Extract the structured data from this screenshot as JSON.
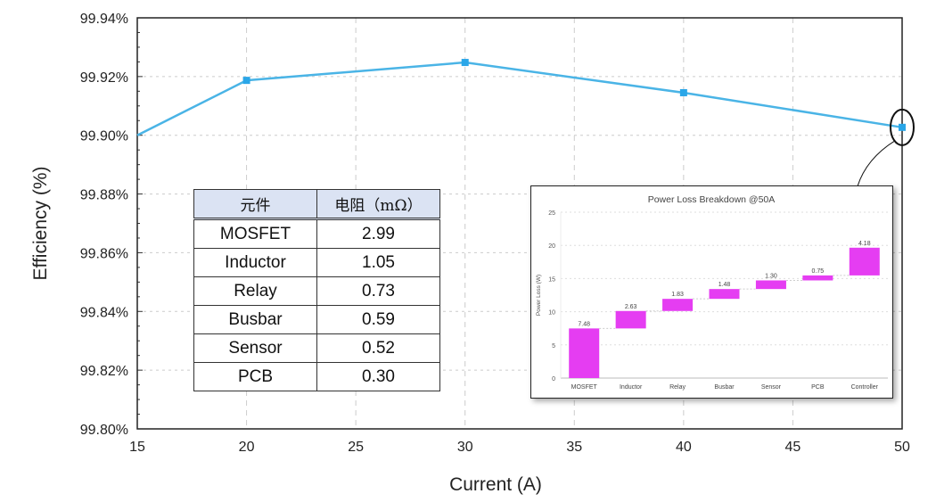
{
  "chart_data": [
    {
      "type": "line",
      "title": "",
      "xlabel": "Current (A)",
      "ylabel": "Efficiency (%)",
      "x": [
        15,
        20,
        30,
        40,
        50
      ],
      "series": [
        {
          "name": "Efficiency",
          "values": [
            99.9,
            99.9187,
            99.9248,
            99.9145,
            99.9027
          ],
          "color": "#4ab4e6"
        }
      ],
      "xlim": [
        15,
        50
      ],
      "ylim": [
        99.8,
        99.94
      ],
      "xticks": [
        "15",
        "20",
        "25",
        "30",
        "35",
        "40",
        "45",
        "50"
      ],
      "yticks": [
        "99.80%",
        "99.82%",
        "99.84%",
        "99.86%",
        "99.88%",
        "99.90%",
        "99.92%",
        "99.94%"
      ],
      "grid": true,
      "annotation": "circle around 50 A point"
    },
    {
      "type": "bar",
      "subtype": "waterfall",
      "title": "Power Loss Breakdown @50A",
      "xlabel": "",
      "ylabel": "Power Loss (W)",
      "categories": [
        "MOSFET",
        "Inductor",
        "Relay",
        "Busbar",
        "Sensor",
        "PCB",
        "Controller"
      ],
      "values": [
        7.48,
        2.63,
        1.83,
        1.48,
        1.3,
        0.75,
        4.18
      ],
      "labels": [
        "7.48",
        "2.63",
        "1.83",
        "1.48",
        "1.30",
        "0.75",
        "4.18"
      ],
      "ylim": [
        0,
        25
      ],
      "yticks": [
        "0",
        "5",
        "10",
        "15",
        "20",
        "25"
      ],
      "color": "#e53df2",
      "grid": true
    },
    {
      "type": "table",
      "headers": [
        "元件",
        "电阻（mΩ）"
      ],
      "rows": [
        [
          "MOSFET",
          "2.99"
        ],
        [
          "Inductor",
          "1.05"
        ],
        [
          "Relay",
          "0.73"
        ],
        [
          "Busbar",
          "0.59"
        ],
        [
          "Sensor",
          "0.52"
        ],
        [
          "PCB",
          "0.30"
        ]
      ]
    }
  ]
}
